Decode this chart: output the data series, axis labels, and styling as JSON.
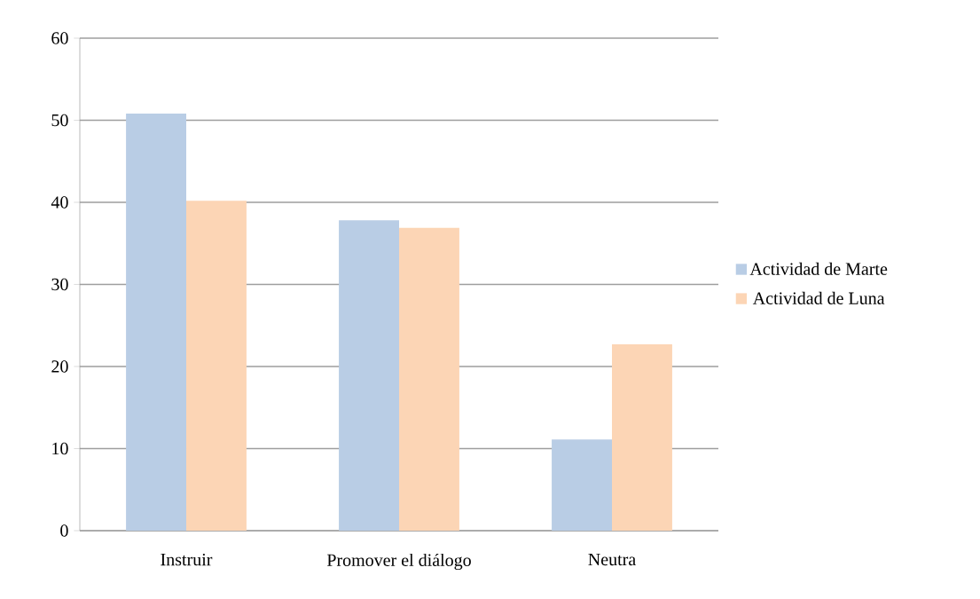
{
  "chart_data": {
    "type": "bar",
    "categories": [
      "Instruir",
      "Promover el diálogo",
      "Neutra"
    ],
    "series": [
      {
        "name": "Actividad de Marte",
        "color": "#b9cde5",
        "values": [
          50.8,
          37.8,
          11.1
        ]
      },
      {
        "name": "Actividad de Luna",
        "color": "#fcd5b5",
        "values": [
          40.2,
          36.9,
          22.7
        ]
      }
    ],
    "ylim": [
      0,
      60
    ],
    "yticks": [
      0,
      10,
      20,
      30,
      40,
      50,
      60
    ],
    "grid": "y",
    "legend": "right"
  }
}
